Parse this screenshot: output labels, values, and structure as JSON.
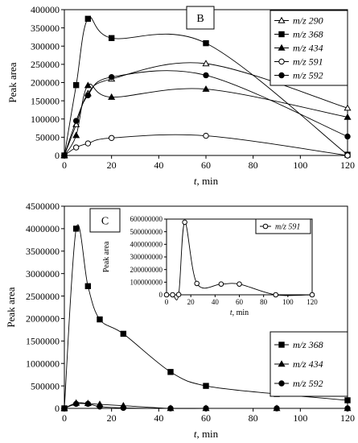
{
  "chart_data": [
    {
      "type": "line",
      "panel_label": "B",
      "xlabel_italic": "t",
      "xlabel_rest": ", min",
      "ylabel": "Peak area",
      "xlim": [
        0,
        120
      ],
      "ylim": [
        0,
        400000
      ],
      "xticks": [
        "0",
        "20",
        "40",
        "60",
        "80",
        "100",
        "120"
      ],
      "yticks": [
        "0",
        "50000",
        "100000",
        "150000",
        "200000",
        "250000",
        "300000",
        "350000",
        "400000"
      ],
      "legend_position": "top-right",
      "series": [
        {
          "name": "m/z 290",
          "marker": "open-triangle",
          "x": [
            0,
            5,
            10,
            20,
            60,
            120
          ],
          "y": [
            0,
            85000,
            170000,
            210000,
            252000,
            130000
          ]
        },
        {
          "name": "m/z 368",
          "marker": "filled-square",
          "x": [
            0,
            5,
            10,
            20,
            60,
            120
          ],
          "y": [
            0,
            193000,
            375000,
            322000,
            308000,
            2000
          ]
        },
        {
          "name": "m/z 434",
          "marker": "filled-triangle",
          "x": [
            0,
            5,
            10,
            20,
            60,
            120
          ],
          "y": [
            0,
            55000,
            192000,
            160000,
            182000,
            105000
          ]
        },
        {
          "name": "m/z 591",
          "marker": "open-circle",
          "x": [
            0,
            5,
            10,
            20,
            60,
            120
          ],
          "y": [
            0,
            22000,
            33000,
            48000,
            54000,
            0
          ]
        },
        {
          "name": "m/z 592",
          "marker": "filled-circle",
          "x": [
            0,
            5,
            10,
            20,
            60,
            120
          ],
          "y": [
            0,
            95000,
            165000,
            215000,
            220000,
            52000
          ]
        }
      ]
    },
    {
      "type": "line",
      "panel_label": "C",
      "xlabel_italic": "t",
      "xlabel_rest": ", min",
      "ylabel": "Peak area",
      "xlim": [
        0,
        120
      ],
      "ylim": [
        0,
        4500000
      ],
      "xticks": [
        "0",
        "20",
        "40",
        "60",
        "80",
        "100",
        "120"
      ],
      "yticks": [
        "0",
        "500000",
        "1000000",
        "1500000",
        "2000000",
        "2500000",
        "3000000",
        "3500000",
        "4000000",
        "4500000"
      ],
      "legend_position": "bottom-right",
      "series": [
        {
          "name": "m/z 368",
          "marker": "filled-square",
          "x": [
            0,
            5,
            10,
            15,
            25,
            45,
            60,
            90,
            120
          ],
          "y": [
            0,
            4000000,
            2720000,
            1980000,
            1660000,
            810000,
            500000,
            320000,
            180000
          ]
        },
        {
          "name": "m/z 434",
          "marker": "filled-triangle",
          "x": [
            0,
            5,
            10,
            15,
            25,
            45,
            60,
            90,
            120
          ],
          "y": [
            0,
            120000,
            110000,
            90000,
            60000,
            0,
            0,
            0,
            0
          ]
        },
        {
          "name": "m/z 592",
          "marker": "filled-circle",
          "x": [
            0,
            5,
            10,
            15,
            25,
            45,
            60,
            90,
            120
          ],
          "y": [
            0,
            100000,
            100000,
            40000,
            10000,
            0,
            0,
            0,
            0
          ]
        }
      ]
    },
    {
      "type": "line",
      "panel_label": "inset",
      "xlabel_italic": "t",
      "xlabel_rest": ", min",
      "ylabel": "Peak area",
      "xlim": [
        0,
        120
      ],
      "ylim": [
        0,
        600000000
      ],
      "xticks": [
        "0",
        "20",
        "40",
        "60",
        "80",
        "100",
        "120"
      ],
      "yticks": [
        "0",
        "100000000",
        "200000000",
        "300000000",
        "400000000",
        "500000000",
        "600000000"
      ],
      "legend_position": "top-right",
      "series": [
        {
          "name": "m/z 591",
          "marker": "open-circle",
          "x": [
            0,
            5,
            10,
            15,
            25,
            45,
            60,
            90,
            120
          ],
          "y": [
            0,
            0,
            2000000,
            575000000,
            90000000,
            85000000,
            85000000,
            0,
            0
          ]
        }
      ]
    }
  ]
}
